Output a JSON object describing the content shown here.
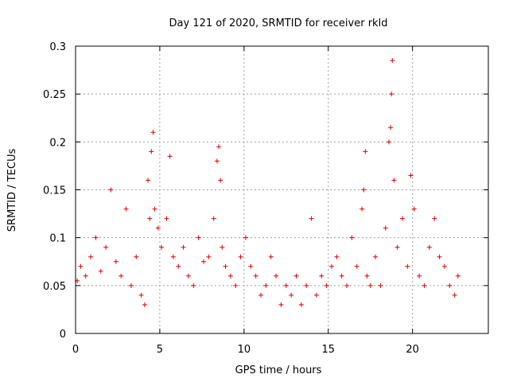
{
  "chart_data": {
    "type": "scatter",
    "title": "Day 121 of 2020, SRMTID for receiver rkld",
    "xlabel": "GPS time / hours",
    "ylabel": "SRMTID / TECUs",
    "xlim": [
      0,
      24.5
    ],
    "ylim": [
      0,
      0.3
    ],
    "xticks": [
      0,
      5,
      10,
      15,
      20
    ],
    "xtick_labels": [
      "0",
      "5",
      "10",
      "15",
      "20"
    ],
    "yticks": [
      0,
      0.05,
      0.1,
      0.15,
      0.2,
      0.25,
      0.3
    ],
    "ytick_labels": [
      "0",
      "0.05",
      "0.1",
      "0.15",
      "0.2",
      "0.25",
      "0.3"
    ],
    "grid": true,
    "marker": "+",
    "color": "#e00000",
    "series": [
      {
        "name": "rkld",
        "x": [
          0.1,
          0.3,
          0.6,
          0.9,
          1.2,
          1.5,
          1.8,
          2.1,
          2.4,
          2.7,
          3.0,
          3.3,
          3.6,
          3.9,
          4.1,
          4.3,
          4.4,
          4.5,
          4.6,
          4.7,
          4.9,
          5.1,
          5.4,
          5.6,
          5.8,
          6.1,
          6.4,
          6.7,
          7.0,
          7.3,
          7.6,
          7.9,
          8.2,
          8.4,
          8.5,
          8.6,
          8.7,
          8.9,
          9.2,
          9.5,
          9.8,
          10.1,
          10.4,
          10.7,
          11.0,
          11.3,
          11.6,
          11.9,
          12.2,
          12.5,
          12.8,
          13.1,
          13.4,
          13.7,
          14.0,
          14.3,
          14.6,
          14.9,
          15.2,
          15.5,
          15.8,
          16.1,
          16.4,
          16.7,
          17.0,
          17.1,
          17.2,
          17.3,
          17.5,
          17.8,
          18.1,
          18.4,
          18.6,
          18.7,
          18.75,
          18.8,
          18.9,
          19.1,
          19.4,
          19.7,
          19.9,
          20.1,
          20.4,
          20.7,
          21.0,
          21.3,
          21.6,
          21.9,
          22.2,
          22.5,
          22.7
        ],
        "y": [
          0.055,
          0.07,
          0.06,
          0.08,
          0.1,
          0.065,
          0.09,
          0.15,
          0.075,
          0.06,
          0.13,
          0.05,
          0.08,
          0.04,
          0.03,
          0.16,
          0.12,
          0.19,
          0.21,
          0.13,
          0.11,
          0.09,
          0.12,
          0.185,
          0.08,
          0.07,
          0.09,
          0.06,
          0.05,
          0.1,
          0.075,
          0.08,
          0.12,
          0.18,
          0.195,
          0.16,
          0.09,
          0.07,
          0.06,
          0.05,
          0.08,
          0.1,
          0.07,
          0.06,
          0.04,
          0.05,
          0.08,
          0.06,
          0.03,
          0.05,
          0.04,
          0.06,
          0.03,
          0.05,
          0.12,
          0.04,
          0.06,
          0.05,
          0.07,
          0.08,
          0.06,
          0.05,
          0.1,
          0.07,
          0.13,
          0.15,
          0.19,
          0.06,
          0.05,
          0.08,
          0.05,
          0.11,
          0.2,
          0.215,
          0.25,
          0.285,
          0.16,
          0.09,
          0.12,
          0.07,
          0.165,
          0.13,
          0.06,
          0.05,
          0.09,
          0.12,
          0.08,
          0.07,
          0.05,
          0.04,
          0.06
        ]
      }
    ]
  }
}
